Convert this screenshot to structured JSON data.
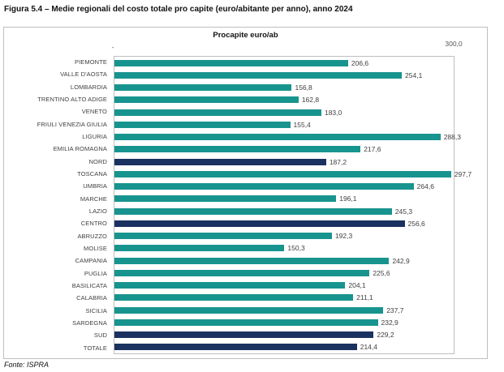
{
  "page": {
    "title": "Figura 5.4 – Medie regionali del costo totale pro capite (euro/abitante per anno), anno 2024",
    "source": "Fonte: ISPRA"
  },
  "chart": {
    "title": "Procapite euro/ab",
    "axis": {
      "min_label": "-",
      "max_label": "300,0"
    },
    "palette": {
      "region": "#18948f",
      "aggregate": "#1b3160"
    }
  },
  "chart_data": {
    "type": "bar",
    "orientation": "horizontal",
    "title": "Procapite euro/ab",
    "xlabel": "",
    "ylabel": "",
    "xlim": [
      0,
      300
    ],
    "grid": false,
    "legend": false,
    "categories": [
      "PIEMONTE",
      "VALLE D'AOSTA",
      "LOMBARDIA",
      "TRENTINO ALTO ADIGE",
      "VENETO",
      "FRIULI VENEZIA GIULIA",
      "LIGURIA",
      "EMILIA ROMAGNA",
      "NORD",
      "TOSCANA",
      "UMBRIA",
      "MARCHE",
      "LAZIO",
      "CENTRO",
      "ABRUZZO",
      "MOLISE",
      "CAMPANIA",
      "PUGLIA",
      "BASILICATA",
      "CALABRIA",
      "SICILIA",
      "SARDEGNA",
      "SUD",
      "TOTALE"
    ],
    "values": [
      206.6,
      254.1,
      156.8,
      162.8,
      183.0,
      155.4,
      288.3,
      217.6,
      187.2,
      297.7,
      264.6,
      196.1,
      245.3,
      256.6,
      192.3,
      150.3,
      242.9,
      225.6,
      204.1,
      211.1,
      237.7,
      232.9,
      229.2,
      214.4
    ],
    "value_labels": [
      "206,6",
      "254,1",
      "156,8",
      "162,8",
      "183,0",
      "155,4",
      "288,3",
      "217,6",
      "187,2",
      "297,7",
      "264,6",
      "196,1",
      "245,3",
      "256,6",
      "192,3",
      "150,3",
      "242,9",
      "225,6",
      "204,1",
      "211,1",
      "237,7",
      "232,9",
      "229,2",
      "214,4"
    ],
    "bar_types": [
      "region",
      "region",
      "region",
      "region",
      "region",
      "region",
      "region",
      "region",
      "aggregate",
      "region",
      "region",
      "region",
      "region",
      "aggregate",
      "region",
      "region",
      "region",
      "region",
      "region",
      "region",
      "region",
      "region",
      "aggregate",
      "aggregate"
    ]
  }
}
